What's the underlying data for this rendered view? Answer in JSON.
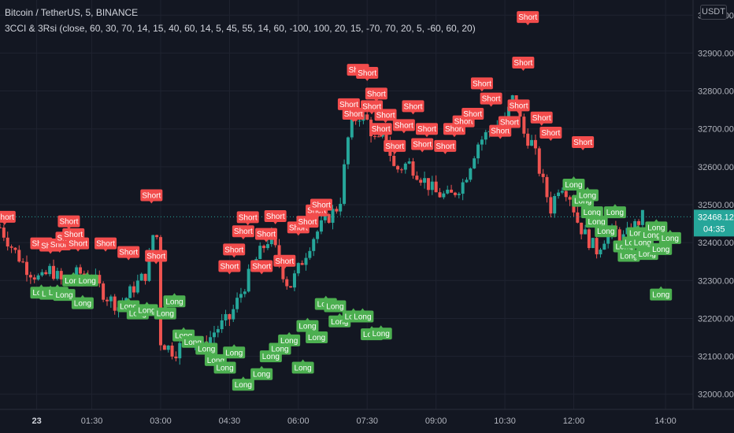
{
  "header": {
    "symbol_line": "Bitcoin / TetherUS, 5, BINANCE",
    "indicator_line": "3CCI & 3Rsi (close, 60, 30, 70, 14, 15, 40, 60, 14, 5, 45, 55, 14, 60, -100, 100, 20, 15, -70, 70, 20, 5, -60, 60, 20)",
    "currency": "USDT"
  },
  "price_label": {
    "price": "32468.12",
    "countdown": "04:35"
  },
  "colors": {
    "background": "#131722",
    "grid": "#1f2330",
    "up": "#26a69a",
    "down": "#ef5350",
    "short": "#f24c4c",
    "long": "#4caf50",
    "price_label": "#26a69a"
  },
  "chart_data": {
    "type": "candlestick",
    "title": "Bitcoin / TetherUS, 5, BINANCE",
    "y_ticks": [
      "32000.00",
      "32100.00",
      "32200.00",
      "32300.00",
      "32400.00",
      "32500.00",
      "32600.00",
      "32700.00",
      "32800.00",
      "32900.00",
      "33000.00"
    ],
    "x_ticks": [
      {
        "label": "23",
        "value": 0.3
      },
      {
        "label": "01:30",
        "value": 1.5
      },
      {
        "label": "03:00",
        "value": 3.0
      },
      {
        "label": "04:30",
        "value": 4.5
      },
      {
        "label": "06:00",
        "value": 6.0
      },
      {
        "label": "07:30",
        "value": 7.5
      },
      {
        "label": "09:00",
        "value": 9.0
      },
      {
        "label": "10:30",
        "value": 10.5
      },
      {
        "label": "12:00",
        "value": 12.0
      },
      {
        "label": "14:00",
        "value": 14.0
      }
    ],
    "xlim": [
      -0.5,
      14.6
    ],
    "ylim": [
      31960,
      33040
    ],
    "grid": true,
    "close_path": [
      [
        -0.5,
        32440
      ],
      [
        -0.2,
        32380
      ],
      [
        0.1,
        32330
      ],
      [
        0.4,
        32300
      ],
      [
        0.6,
        32330
      ],
      [
        0.9,
        32290
      ],
      [
        1.2,
        32320
      ],
      [
        1.5,
        32310
      ],
      [
        1.8,
        32260
      ],
      [
        2.1,
        32230
      ],
      [
        2.4,
        32280
      ],
      [
        2.7,
        32320
      ],
      [
        2.9,
        32470
      ],
      [
        3.0,
        32140
      ],
      [
        3.3,
        32110
      ],
      [
        3.6,
        32150
      ],
      [
        3.9,
        32120
      ],
      [
        4.2,
        32170
      ],
      [
        4.5,
        32200
      ],
      [
        4.8,
        32280
      ],
      [
        5.1,
        32360
      ],
      [
        5.4,
        32420
      ],
      [
        5.6,
        32340
      ],
      [
        5.8,
        32280
      ],
      [
        6.0,
        32330
      ],
      [
        6.3,
        32410
      ],
      [
        6.6,
        32460
      ],
      [
        6.9,
        32500
      ],
      [
        7.1,
        32690
      ],
      [
        7.3,
        32740
      ],
      [
        7.5,
        32720
      ],
      [
        7.7,
        32660
      ],
      [
        7.9,
        32680
      ],
      [
        8.1,
        32590
      ],
      [
        8.4,
        32610
      ],
      [
        8.7,
        32570
      ],
      [
        9.0,
        32530
      ],
      [
        9.3,
        32520
      ],
      [
        9.6,
        32560
      ],
      [
        9.9,
        32660
      ],
      [
        10.2,
        32700
      ],
      [
        10.5,
        32720
      ],
      [
        10.7,
        32790
      ],
      [
        10.9,
        32690
      ],
      [
        11.1,
        32660
      ],
      [
        11.3,
        32570
      ],
      [
        11.5,
        32490
      ],
      [
        11.7,
        32560
      ],
      [
        11.9,
        32530
      ],
      [
        12.1,
        32450
      ],
      [
        12.3,
        32410
      ],
      [
        12.5,
        32380
      ],
      [
        12.7,
        32420
      ],
      [
        12.9,
        32430
      ],
      [
        13.1,
        32410
      ],
      [
        13.3,
        32440
      ],
      [
        13.5,
        32468
      ]
    ],
    "signals": [
      {
        "label": "Short",
        "x": -0.4,
        "y": 32468
      },
      {
        "label": "Short",
        "x": 0.4,
        "y": 32398
      },
      {
        "label": "Short",
        "x": 0.6,
        "y": 32392
      },
      {
        "label": "Short",
        "x": 0.8,
        "y": 32395
      },
      {
        "label": "Short",
        "x": 0.95,
        "y": 32413
      },
      {
        "label": "Short",
        "x": 1.1,
        "y": 32422
      },
      {
        "label": "Short",
        "x": 1.0,
        "y": 32456
      },
      {
        "label": "Short",
        "x": 1.2,
        "y": 32398
      },
      {
        "label": "Short",
        "x": 1.8,
        "y": 32398
      },
      {
        "label": "Short",
        "x": 2.3,
        "y": 32375
      },
      {
        "label": "Short",
        "x": 2.8,
        "y": 32525
      },
      {
        "label": "Short",
        "x": 2.9,
        "y": 32365
      },
      {
        "label": "Short",
        "x": 4.5,
        "y": 32338
      },
      {
        "label": "Short",
        "x": 4.6,
        "y": 32382
      },
      {
        "label": "Short",
        "x": 4.8,
        "y": 32430
      },
      {
        "label": "Short",
        "x": 4.9,
        "y": 32467
      },
      {
        "label": "Short",
        "x": 5.2,
        "y": 32338
      },
      {
        "label": "Short",
        "x": 5.3,
        "y": 32423
      },
      {
        "label": "Short",
        "x": 5.5,
        "y": 32470
      },
      {
        "label": "Short",
        "x": 5.7,
        "y": 32352
      },
      {
        "label": "Short",
        "x": 6.0,
        "y": 32440
      },
      {
        "label": "Short",
        "x": 6.2,
        "y": 32455
      },
      {
        "label": "Short",
        "x": 6.4,
        "y": 32485
      },
      {
        "label": "Short",
        "x": 6.5,
        "y": 32500
      },
      {
        "label": "Short",
        "x": 7.1,
        "y": 32765
      },
      {
        "label": "Short",
        "x": 7.2,
        "y": 32740
      },
      {
        "label": "Short",
        "x": 7.3,
        "y": 32856
      },
      {
        "label": "Short",
        "x": 7.5,
        "y": 32848
      },
      {
        "label": "Short",
        "x": 7.6,
        "y": 32760
      },
      {
        "label": "Short",
        "x": 7.7,
        "y": 32793
      },
      {
        "label": "Short",
        "x": 7.8,
        "y": 32700
      },
      {
        "label": "Short",
        "x": 7.9,
        "y": 32737
      },
      {
        "label": "Short",
        "x": 8.1,
        "y": 32655
      },
      {
        "label": "Short",
        "x": 8.3,
        "y": 32710
      },
      {
        "label": "Short",
        "x": 8.5,
        "y": 32760
      },
      {
        "label": "Short",
        "x": 8.7,
        "y": 32660
      },
      {
        "label": "Short",
        "x": 8.8,
        "y": 32700
      },
      {
        "label": "Short",
        "x": 9.2,
        "y": 32655
      },
      {
        "label": "Short",
        "x": 9.4,
        "y": 32700
      },
      {
        "label": "Short",
        "x": 9.6,
        "y": 32720
      },
      {
        "label": "Short",
        "x": 9.8,
        "y": 32740
      },
      {
        "label": "Short",
        "x": 10.0,
        "y": 32820
      },
      {
        "label": "Short",
        "x": 10.2,
        "y": 32780
      },
      {
        "label": "Short",
        "x": 10.4,
        "y": 32695
      },
      {
        "label": "Short",
        "x": 10.6,
        "y": 32718
      },
      {
        "label": "Short",
        "x": 10.8,
        "y": 32762
      },
      {
        "label": "Short",
        "x": 10.9,
        "y": 32875
      },
      {
        "label": "Short",
        "x": 11.0,
        "y": 32995
      },
      {
        "label": "Short",
        "x": 11.3,
        "y": 32730
      },
      {
        "label": "Short",
        "x": 11.5,
        "y": 32690
      },
      {
        "label": "Short",
        "x": 12.2,
        "y": 32665
      },
      {
        "label": "Long",
        "x": 0.4,
        "y": 32268
      },
      {
        "label": "Long",
        "x": 0.6,
        "y": 32265
      },
      {
        "label": "Long",
        "x": 0.75,
        "y": 32268
      },
      {
        "label": "Long",
        "x": 0.9,
        "y": 32262
      },
      {
        "label": "Long",
        "x": 1.1,
        "y": 32300
      },
      {
        "label": "Long",
        "x": 1.4,
        "y": 32300
      },
      {
        "label": "Long",
        "x": 1.3,
        "y": 32240
      },
      {
        "label": "Long",
        "x": 2.3,
        "y": 32232
      },
      {
        "label": "Long",
        "x": 2.5,
        "y": 32213
      },
      {
        "label": "Long",
        "x": 2.7,
        "y": 32222
      },
      {
        "label": "Long",
        "x": 3.1,
        "y": 32213
      },
      {
        "label": "Long",
        "x": 3.3,
        "y": 32245
      },
      {
        "label": "Long",
        "x": 3.5,
        "y": 32155
      },
      {
        "label": "Long",
        "x": 3.7,
        "y": 32138
      },
      {
        "label": "Long",
        "x": 4.0,
        "y": 32120
      },
      {
        "label": "Long",
        "x": 4.2,
        "y": 32090
      },
      {
        "label": "Long",
        "x": 4.4,
        "y": 32070
      },
      {
        "label": "Long",
        "x": 4.6,
        "y": 32110
      },
      {
        "label": "Long",
        "x": 4.8,
        "y": 32025
      },
      {
        "label": "Long",
        "x": 5.2,
        "y": 32053
      },
      {
        "label": "Long",
        "x": 5.4,
        "y": 32100
      },
      {
        "label": "Long",
        "x": 5.6,
        "y": 32120
      },
      {
        "label": "Long",
        "x": 5.8,
        "y": 32142
      },
      {
        "label": "Long",
        "x": 6.1,
        "y": 32070
      },
      {
        "label": "Long",
        "x": 6.2,
        "y": 32180
      },
      {
        "label": "Long",
        "x": 6.4,
        "y": 32150
      },
      {
        "label": "Long",
        "x": 6.6,
        "y": 32238
      },
      {
        "label": "Long",
        "x": 6.8,
        "y": 32232
      },
      {
        "label": "Long",
        "x": 6.9,
        "y": 32192
      },
      {
        "label": "Long",
        "x": 7.2,
        "y": 32205
      },
      {
        "label": "Long",
        "x": 7.4,
        "y": 32205
      },
      {
        "label": "Long",
        "x": 7.6,
        "y": 32158
      },
      {
        "label": "Long",
        "x": 7.8,
        "y": 32160
      },
      {
        "label": "Long",
        "x": 12.0,
        "y": 32553
      },
      {
        "label": "Long",
        "x": 12.2,
        "y": 32510
      },
      {
        "label": "Long",
        "x": 12.3,
        "y": 32525
      },
      {
        "label": "Long",
        "x": 12.4,
        "y": 32480
      },
      {
        "label": "Long",
        "x": 12.5,
        "y": 32455
      },
      {
        "label": "Long",
        "x": 12.7,
        "y": 32430
      },
      {
        "label": "Long",
        "x": 12.9,
        "y": 32480
      },
      {
        "label": "Long",
        "x": 13.1,
        "y": 32390
      },
      {
        "label": "Long",
        "x": 13.2,
        "y": 32365
      },
      {
        "label": "Long",
        "x": 13.3,
        "y": 32400
      },
      {
        "label": "Long",
        "x": 13.4,
        "y": 32425
      },
      {
        "label": "Long",
        "x": 13.5,
        "y": 32400
      },
      {
        "label": "Long",
        "x": 13.6,
        "y": 32370
      },
      {
        "label": "Long",
        "x": 13.7,
        "y": 32420
      },
      {
        "label": "Long",
        "x": 13.8,
        "y": 32440
      },
      {
        "label": "Long",
        "x": 13.9,
        "y": 32383
      },
      {
        "label": "Long",
        "x": 14.1,
        "y": 32412
      },
      {
        "label": "Long",
        "x": 13.9,
        "y": 32263
      }
    ]
  }
}
